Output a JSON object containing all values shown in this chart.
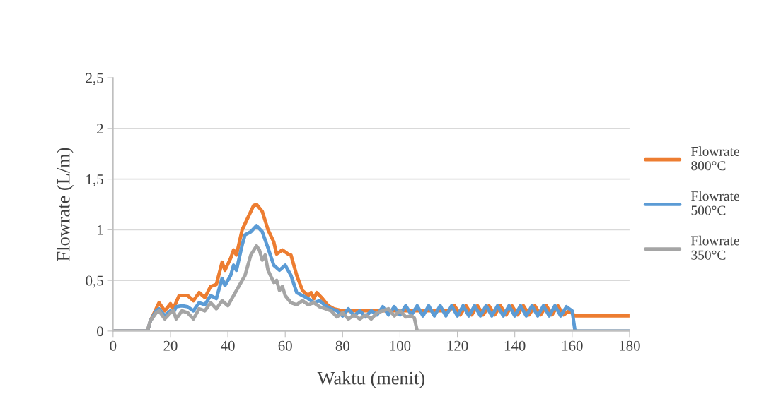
{
  "chart_data": {
    "type": "line",
    "xlabel": "Waktu (menit)",
    "ylabel": "Flowrate (L/m)",
    "xlim": [
      0,
      180
    ],
    "xticks": [
      0,
      20,
      40,
      60,
      80,
      100,
      120,
      140,
      160,
      180
    ],
    "ylim": [
      0,
      2.5
    ],
    "yticks": [
      0,
      {
        "value": 0.5,
        "label": "0,5"
      },
      1,
      {
        "value": 1.5,
        "label": "1,5"
      },
      2,
      {
        "value": 2.5,
        "label": "2,5"
      }
    ],
    "grid": "y",
    "legend": "right",
    "marker": "none",
    "line_style": "solid",
    "series": [
      {
        "name": "Flowrate\n800°C",
        "color": "#ed7d31",
        "x": [
          0,
          12,
          13,
          15,
          16,
          18,
          20,
          21,
          23,
          26,
          28,
          30,
          32,
          34,
          36,
          38,
          39,
          41,
          42,
          43,
          45,
          47,
          49,
          50,
          52,
          54,
          56,
          57,
          59,
          61,
          62,
          64,
          66,
          68,
          69,
          70,
          71,
          73,
          75,
          77,
          80,
          85,
          90,
          100,
          110,
          117,
          119,
          121,
          123,
          125,
          127,
          129,
          131,
          133,
          135,
          137,
          139,
          141,
          143,
          145,
          147,
          149,
          151,
          153,
          155,
          157,
          159,
          161,
          180
        ],
        "values": [
          0,
          0,
          0.1,
          0.22,
          0.28,
          0.2,
          0.27,
          0.22,
          0.35,
          0.35,
          0.3,
          0.38,
          0.33,
          0.44,
          0.46,
          0.68,
          0.6,
          0.72,
          0.8,
          0.75,
          1.0,
          1.12,
          1.24,
          1.25,
          1.18,
          1.0,
          0.88,
          0.76,
          0.8,
          0.76,
          0.75,
          0.55,
          0.4,
          0.35,
          0.38,
          0.32,
          0.38,
          0.32,
          0.25,
          0.22,
          0.2,
          0.2,
          0.2,
          0.2,
          0.2,
          0.2,
          0.25,
          0.16,
          0.25,
          0.16,
          0.25,
          0.16,
          0.25,
          0.16,
          0.25,
          0.16,
          0.25,
          0.16,
          0.25,
          0.16,
          0.25,
          0.16,
          0.25,
          0.16,
          0.25,
          0.16,
          0.2,
          0.15,
          0.15
        ]
      },
      {
        "name": "Flowrate\n500°C",
        "color": "#5b9bd5",
        "x": [
          0,
          12,
          13,
          15,
          16,
          18,
          20,
          21,
          22,
          24,
          26,
          28,
          30,
          32,
          34,
          36,
          38,
          39,
          41,
          42,
          43,
          45,
          46,
          48,
          50,
          52,
          54,
          56,
          58,
          60,
          62,
          64,
          66,
          68,
          70,
          72,
          74,
          76,
          78,
          80,
          82,
          84,
          86,
          88,
          90,
          92,
          94,
          96,
          98,
          100,
          102,
          104,
          106,
          108,
          110,
          112,
          114,
          116,
          118,
          120,
          122,
          124,
          126,
          128,
          130,
          132,
          134,
          136,
          138,
          140,
          142,
          144,
          146,
          148,
          150,
          152,
          154,
          156,
          158,
          160,
          161,
          180
        ],
        "values": [
          0,
          0,
          0.1,
          0.2,
          0.22,
          0.15,
          0.2,
          0.18,
          0.24,
          0.25,
          0.24,
          0.2,
          0.28,
          0.26,
          0.35,
          0.32,
          0.52,
          0.45,
          0.55,
          0.65,
          0.6,
          0.85,
          0.95,
          0.98,
          1.04,
          0.98,
          0.82,
          0.65,
          0.6,
          0.65,
          0.55,
          0.38,
          0.35,
          0.32,
          0.28,
          0.3,
          0.25,
          0.22,
          0.2,
          0.15,
          0.22,
          0.15,
          0.2,
          0.14,
          0.2,
          0.16,
          0.24,
          0.16,
          0.24,
          0.16,
          0.25,
          0.16,
          0.25,
          0.15,
          0.25,
          0.15,
          0.25,
          0.15,
          0.25,
          0.15,
          0.25,
          0.15,
          0.25,
          0.15,
          0.25,
          0.15,
          0.25,
          0.15,
          0.25,
          0.15,
          0.25,
          0.15,
          0.25,
          0.15,
          0.25,
          0.15,
          0.25,
          0.15,
          0.24,
          0.2,
          0,
          0
        ]
      },
      {
        "name": "Flowrate\n350°C",
        "color": "#a5a5a5",
        "x": [
          0,
          12,
          13,
          15,
          16,
          18,
          20,
          21,
          22,
          24,
          26,
          28,
          30,
          32,
          34,
          36,
          38,
          40,
          42,
          44,
          46,
          48,
          50,
          51,
          52,
          53,
          54,
          56,
          57,
          58,
          59,
          60,
          62,
          64,
          66,
          68,
          70,
          72,
          74,
          76,
          78,
          80,
          82,
          84,
          86,
          88,
          90,
          92,
          94,
          96,
          98,
          100,
          102,
          104,
          105,
          106,
          180
        ],
        "values": [
          0,
          0,
          0.1,
          0.18,
          0.2,
          0.12,
          0.18,
          0.2,
          0.12,
          0.2,
          0.18,
          0.12,
          0.22,
          0.2,
          0.28,
          0.22,
          0.3,
          0.25,
          0.35,
          0.45,
          0.55,
          0.75,
          0.84,
          0.8,
          0.7,
          0.75,
          0.6,
          0.48,
          0.5,
          0.4,
          0.44,
          0.35,
          0.28,
          0.26,
          0.3,
          0.26,
          0.28,
          0.24,
          0.22,
          0.2,
          0.14,
          0.18,
          0.12,
          0.16,
          0.12,
          0.16,
          0.12,
          0.18,
          0.2,
          0.22,
          0.15,
          0.2,
          0.14,
          0.15,
          0.13,
          0,
          0
        ]
      }
    ]
  }
}
